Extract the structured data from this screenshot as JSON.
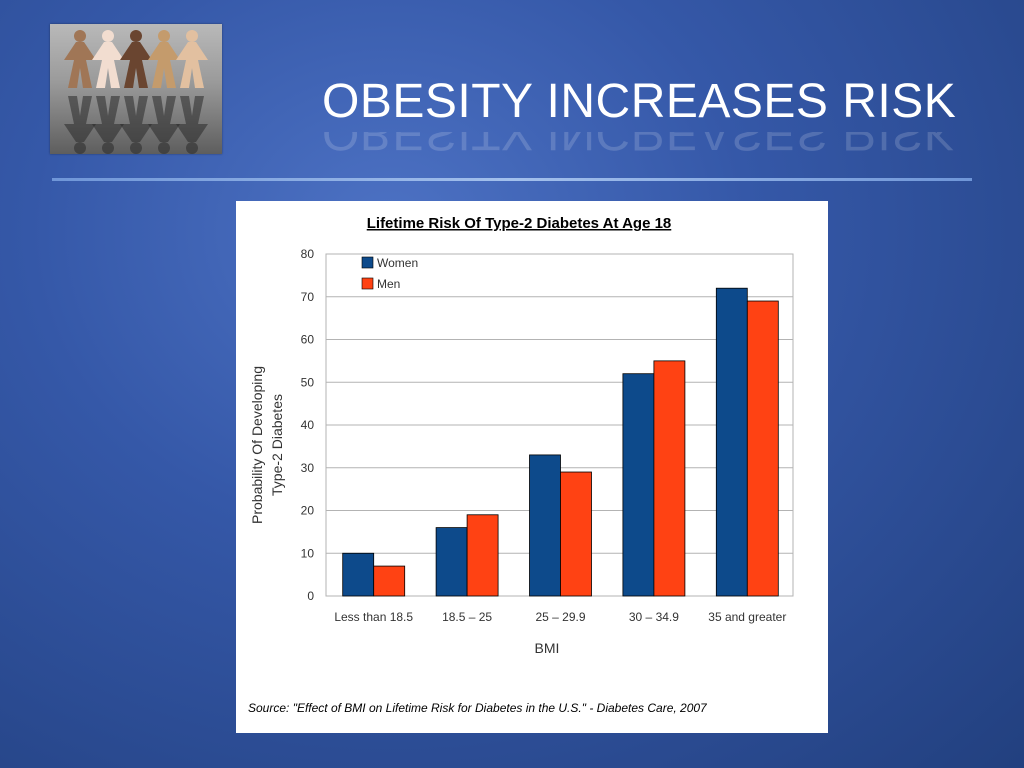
{
  "slide": {
    "title": "OBESITY INCREASES RISK"
  },
  "logo": {
    "icon": "paper-doll-chain-icon"
  },
  "colors": {
    "women": "#0d4a8b",
    "men": "#ff4213",
    "grid": "#b3b3b3"
  },
  "chart_data": {
    "type": "bar",
    "title": "Lifetime Risk Of Type-2 Diabetes At Age 18",
    "xlabel": "BMI",
    "ylabel_lines": [
      "Probability Of Developing",
      "Type-2 Diabetes"
    ],
    "categories": [
      "Less than 18.5",
      "18.5 – 25",
      "25 – 29.9",
      "30 – 34.9",
      "35 and greater"
    ],
    "series": [
      {
        "name": "Women",
        "values": [
          10,
          16,
          33,
          52,
          72
        ]
      },
      {
        "name": "Men",
        "values": [
          7,
          19,
          29,
          55,
          69
        ]
      }
    ],
    "ylim": [
      0,
      80
    ],
    "yticks": [
      0,
      10,
      20,
      30,
      40,
      50,
      60,
      70,
      80
    ],
    "grid": true,
    "legend_position": "top-left",
    "source": "Source: \"Effect of BMI on Lifetime Risk for Diabetes in the U.S.\" - Diabetes Care, 2007"
  }
}
